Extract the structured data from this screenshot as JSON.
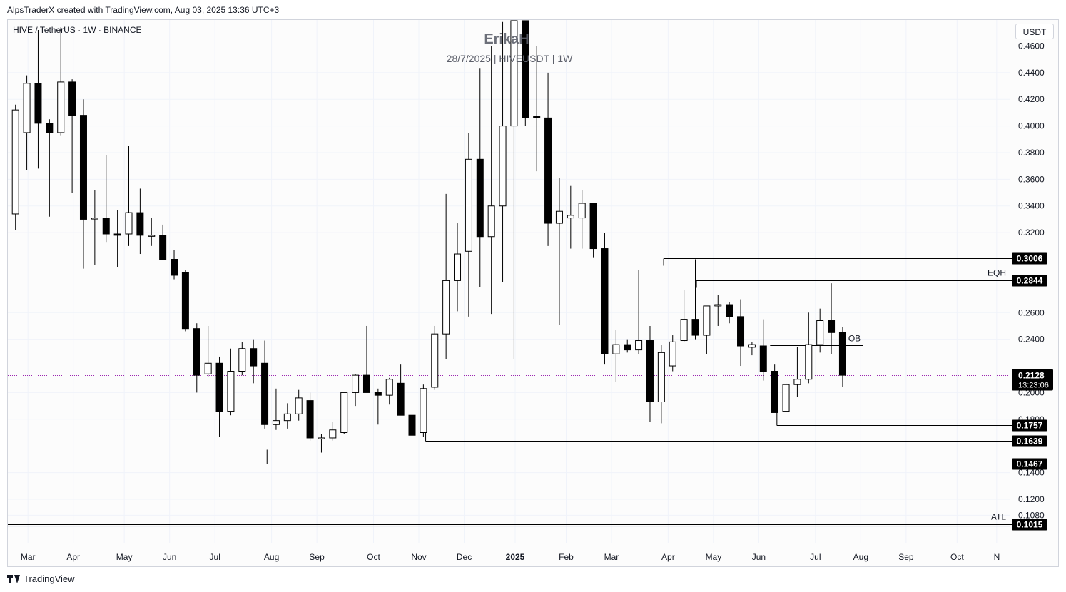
{
  "header": {
    "credit": "AlpsTraderX created with TradingView.com, Aug 03, 2025 13:36 UTC+3"
  },
  "symbol_line": "HIVE / TetherUS · 1W · BINANCE",
  "watermark": {
    "title": "ErikaH",
    "subtitle": "28/7/2025 | HIVEUSDT | 1W"
  },
  "currency_label": "USDT",
  "footer": {
    "logo_text": "TradingView",
    "logo_icon": "tradingview-logo-icon"
  },
  "colors": {
    "candle_up_fill": "#ffffff",
    "candle_down_fill": "#000000",
    "candle_outline": "#000000",
    "grid": "#f0f3fa",
    "price_line": "#9c27b0"
  },
  "chart_data": {
    "type": "candlestick",
    "interval": "1W",
    "y_range": [
      0.0975,
      0.4795
    ],
    "y_ticks": [
      "0.4600",
      "0.4400",
      "0.4200",
      "0.4000",
      "0.3800",
      "0.3600",
      "0.3400",
      "0.3200",
      "0.2600",
      "0.2400",
      "0.2000",
      "0.1800",
      "0.1400",
      "0.1200",
      "0.1080"
    ],
    "x_labels": [
      {
        "label": "Mar",
        "week": 1.1
      },
      {
        "label": "Apr",
        "week": 5.1
      },
      {
        "label": "May",
        "week": 9.6
      },
      {
        "label": "Jun",
        "week": 13.6
      },
      {
        "label": "Jul",
        "week": 17.6
      },
      {
        "label": "Aug",
        "week": 22.6
      },
      {
        "label": "Sep",
        "week": 26.6
      },
      {
        "label": "Oct",
        "week": 31.6
      },
      {
        "label": "Nov",
        "week": 35.6
      },
      {
        "label": "Dec",
        "week": 39.6
      },
      {
        "label": "2025",
        "week": 44.1
      },
      {
        "label": "Feb",
        "week": 48.6
      },
      {
        "label": "Mar",
        "week": 52.6
      },
      {
        "label": "Apr",
        "week": 57.6
      },
      {
        "label": "May",
        "week": 61.6
      },
      {
        "label": "Jun",
        "week": 65.6
      },
      {
        "label": "Jul",
        "week": 70.6
      },
      {
        "label": "Aug",
        "week": 74.6
      },
      {
        "label": "Sep",
        "week": 78.6
      },
      {
        "label": "Oct",
        "week": 83.1
      },
      {
        "label": "N",
        "week": 86.6
      }
    ],
    "candles": [
      {
        "o": 0.334,
        "h": 0.416,
        "l": 0.322,
        "c": 0.412
      },
      {
        "o": 0.395,
        "h": 0.438,
        "l": 0.367,
        "c": 0.432
      },
      {
        "o": 0.432,
        "h": 0.472,
        "l": 0.368,
        "c": 0.402
      },
      {
        "o": 0.402,
        "h": 0.405,
        "l": 0.332,
        "c": 0.395
      },
      {
        "o": 0.395,
        "h": 0.474,
        "l": 0.393,
        "c": 0.433
      },
      {
        "o": 0.433,
        "h": 0.435,
        "l": 0.35,
        "c": 0.408
      },
      {
        "o": 0.408,
        "h": 0.42,
        "l": 0.293,
        "c": 0.33
      },
      {
        "o": 0.331,
        "h": 0.352,
        "l": 0.296,
        "c": 0.331
      },
      {
        "o": 0.331,
        "h": 0.378,
        "l": 0.313,
        "c": 0.319
      },
      {
        "o": 0.319,
        "h": 0.337,
        "l": 0.294,
        "c": 0.318
      },
      {
        "o": 0.319,
        "h": 0.385,
        "l": 0.31,
        "c": 0.335
      },
      {
        "o": 0.335,
        "h": 0.353,
        "l": 0.304,
        "c": 0.318
      },
      {
        "o": 0.318,
        "h": 0.331,
        "l": 0.31,
        "c": 0.318
      },
      {
        "o": 0.318,
        "h": 0.326,
        "l": 0.302,
        "c": 0.3
      },
      {
        "o": 0.3,
        "h": 0.307,
        "l": 0.285,
        "c": 0.288
      },
      {
        "o": 0.29,
        "h": 0.292,
        "l": 0.246,
        "c": 0.248
      },
      {
        "o": 0.248,
        "h": 0.252,
        "l": 0.2,
        "c": 0.213
      },
      {
        "o": 0.214,
        "h": 0.25,
        "l": 0.212,
        "c": 0.222
      },
      {
        "o": 0.222,
        "h": 0.227,
        "l": 0.167,
        "c": 0.186
      },
      {
        "o": 0.186,
        "h": 0.233,
        "l": 0.183,
        "c": 0.216
      },
      {
        "o": 0.216,
        "h": 0.238,
        "l": 0.213,
        "c": 0.233
      },
      {
        "o": 0.233,
        "h": 0.24,
        "l": 0.207,
        "c": 0.22
      },
      {
        "o": 0.222,
        "h": 0.239,
        "l": 0.173,
        "c": 0.176
      },
      {
        "o": 0.176,
        "h": 0.203,
        "l": 0.172,
        "c": 0.179
      },
      {
        "o": 0.179,
        "h": 0.192,
        "l": 0.173,
        "c": 0.184
      },
      {
        "o": 0.184,
        "h": 0.202,
        "l": 0.179,
        "c": 0.196
      },
      {
        "o": 0.194,
        "h": 0.2,
        "l": 0.164,
        "c": 0.166
      },
      {
        "o": 0.166,
        "h": 0.169,
        "l": 0.155,
        "c": 0.166
      },
      {
        "o": 0.166,
        "h": 0.178,
        "l": 0.164,
        "c": 0.172
      },
      {
        "o": 0.17,
        "h": 0.199,
        "l": 0.169,
        "c": 0.2
      },
      {
        "o": 0.2,
        "h": 0.214,
        "l": 0.19,
        "c": 0.213
      },
      {
        "o": 0.213,
        "h": 0.25,
        "l": 0.2,
        "c": 0.2
      },
      {
        "o": 0.2,
        "h": 0.203,
        "l": 0.176,
        "c": 0.198
      },
      {
        "o": 0.198,
        "h": 0.211,
        "l": 0.191,
        "c": 0.21
      },
      {
        "o": 0.207,
        "h": 0.221,
        "l": 0.185,
        "c": 0.183
      },
      {
        "o": 0.183,
        "h": 0.188,
        "l": 0.162,
        "c": 0.168
      },
      {
        "o": 0.17,
        "h": 0.206,
        "l": 0.167,
        "c": 0.203
      },
      {
        "o": 0.204,
        "h": 0.25,
        "l": 0.202,
        "c": 0.244
      },
      {
        "o": 0.244,
        "h": 0.349,
        "l": 0.225,
        "c": 0.284
      },
      {
        "o": 0.284,
        "h": 0.327,
        "l": 0.261,
        "c": 0.304
      },
      {
        "o": 0.306,
        "h": 0.395,
        "l": 0.257,
        "c": 0.375
      },
      {
        "o": 0.375,
        "h": 0.443,
        "l": 0.279,
        "c": 0.317
      },
      {
        "o": 0.317,
        "h": 0.46,
        "l": 0.259,
        "c": 0.34
      },
      {
        "o": 0.34,
        "h": 0.478,
        "l": 0.283,
        "c": 0.4
      },
      {
        "o": 0.4,
        "h": 0.479,
        "l": 0.225,
        "c": 0.479
      },
      {
        "o": 0.479,
        "h": 0.479,
        "l": 0.4,
        "c": 0.406
      },
      {
        "o": 0.407,
        "h": 0.46,
        "l": 0.366,
        "c": 0.406
      },
      {
        "o": 0.406,
        "h": 0.44,
        "l": 0.31,
        "c": 0.327
      },
      {
        "o": 0.327,
        "h": 0.361,
        "l": 0.251,
        "c": 0.336
      },
      {
        "o": 0.331,
        "h": 0.355,
        "l": 0.308,
        "c": 0.333
      },
      {
        "o": 0.331,
        "h": 0.352,
        "l": 0.308,
        "c": 0.342
      },
      {
        "o": 0.342,
        "h": 0.342,
        "l": 0.301,
        "c": 0.308
      },
      {
        "o": 0.308,
        "h": 0.32,
        "l": 0.221,
        "c": 0.229
      },
      {
        "o": 0.229,
        "h": 0.247,
        "l": 0.208,
        "c": 0.236
      },
      {
        "o": 0.236,
        "h": 0.24,
        "l": 0.23,
        "c": 0.232
      },
      {
        "o": 0.232,
        "h": 0.292,
        "l": 0.229,
        "c": 0.239
      },
      {
        "o": 0.239,
        "h": 0.25,
        "l": 0.178,
        "c": 0.193
      },
      {
        "o": 0.193,
        "h": 0.236,
        "l": 0.177,
        "c": 0.23
      },
      {
        "o": 0.22,
        "h": 0.243,
        "l": 0.216,
        "c": 0.238
      },
      {
        "o": 0.239,
        "h": 0.277,
        "l": 0.238,
        "c": 0.255
      },
      {
        "o": 0.255,
        "h": 0.3,
        "l": 0.24,
        "c": 0.243
      },
      {
        "o": 0.243,
        "h": 0.265,
        "l": 0.229,
        "c": 0.265
      },
      {
        "o": 0.265,
        "h": 0.273,
        "l": 0.25,
        "c": 0.266
      },
      {
        "o": 0.266,
        "h": 0.268,
        "l": 0.252,
        "c": 0.257
      },
      {
        "o": 0.257,
        "h": 0.27,
        "l": 0.22,
        "c": 0.235
      },
      {
        "o": 0.234,
        "h": 0.238,
        "l": 0.228,
        "c": 0.236
      },
      {
        "o": 0.235,
        "h": 0.255,
        "l": 0.209,
        "c": 0.216
      },
      {
        "o": 0.216,
        "h": 0.221,
        "l": 0.185,
        "c": 0.185
      },
      {
        "o": 0.186,
        "h": 0.207,
        "l": 0.186,
        "c": 0.206
      },
      {
        "o": 0.206,
        "h": 0.234,
        "l": 0.197,
        "c": 0.21
      },
      {
        "o": 0.21,
        "h": 0.26,
        "l": 0.207,
        "c": 0.236
      },
      {
        "o": 0.236,
        "h": 0.263,
        "l": 0.23,
        "c": 0.254
      },
      {
        "o": 0.254,
        "h": 0.282,
        "l": 0.229,
        "c": 0.245
      },
      {
        "o": 0.245,
        "h": 0.249,
        "l": 0.204,
        "c": 0.213
      }
    ],
    "levels": [
      {
        "label": "0.3006",
        "value": 0.3006,
        "from_week": 57.2,
        "style": "horizontal-ray"
      },
      {
        "label": "0.2844",
        "value": 0.2844,
        "from_week": 60.1,
        "style": "horizontal-ray",
        "tag": "EQH"
      },
      {
        "label": "0.1757",
        "value": 0.1757,
        "from_week": 67.2,
        "style": "horizontal-ray"
      },
      {
        "label": "0.1639",
        "value": 0.1639,
        "from_week": 36.2,
        "style": "horizontal-ray"
      },
      {
        "label": "0.1467",
        "value": 0.1467,
        "from_week": 22.2,
        "style": "horizontal-ray"
      },
      {
        "label": "0.1015",
        "value": 0.1015,
        "from_week": -2,
        "style": "horizontal-ray",
        "tag": "ATL"
      }
    ],
    "ob_zone": {
      "label": "OB",
      "value": 0.2355,
      "from_week": 66.6,
      "to_week": 74.8
    },
    "current_price": {
      "value": "0.2128",
      "countdown": "13:23:06"
    }
  }
}
